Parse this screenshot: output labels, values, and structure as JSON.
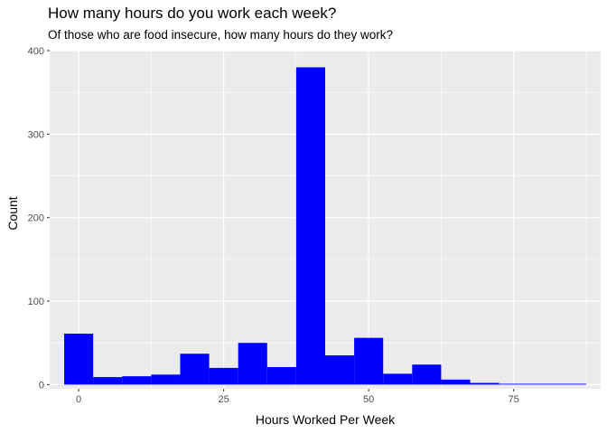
{
  "chart_data": {
    "type": "bar",
    "title": "How many hours do you work each week?",
    "subtitle": "Of those who are food insecure, how many hours do they work?",
    "xlabel": "Hours Worked Per Week",
    "ylabel": "Count",
    "xlim": [
      -5,
      90
    ],
    "ylim": [
      -5,
      400
    ],
    "x_ticks": [
      0,
      25,
      50,
      75
    ],
    "x_tick_labels": [
      "0",
      "25",
      "50",
      "75"
    ],
    "y_ticks": [
      0,
      100,
      200,
      300,
      400
    ],
    "y_tick_labels": [
      "0",
      "100",
      "200",
      "300",
      "400"
    ],
    "bin_width": 5,
    "bins": [
      {
        "x": 0,
        "count": 61
      },
      {
        "x": 5,
        "count": 9
      },
      {
        "x": 10,
        "count": 10
      },
      {
        "x": 15,
        "count": 12
      },
      {
        "x": 20,
        "count": 37
      },
      {
        "x": 25,
        "count": 20
      },
      {
        "x": 30,
        "count": 50
      },
      {
        "x": 35,
        "count": 21
      },
      {
        "x": 40,
        "count": 380
      },
      {
        "x": 45,
        "count": 35
      },
      {
        "x": 50,
        "count": 56
      },
      {
        "x": 55,
        "count": 13
      },
      {
        "x": 60,
        "count": 24
      },
      {
        "x": 65,
        "count": 6
      },
      {
        "x": 70,
        "count": 2
      },
      {
        "x": 75,
        "count": 1
      },
      {
        "x": 80,
        "count": 1
      },
      {
        "x": 85,
        "count": 1
      }
    ],
    "bar_color": "#0000ff",
    "panel_background": "#ebebeb",
    "grid": true
  }
}
